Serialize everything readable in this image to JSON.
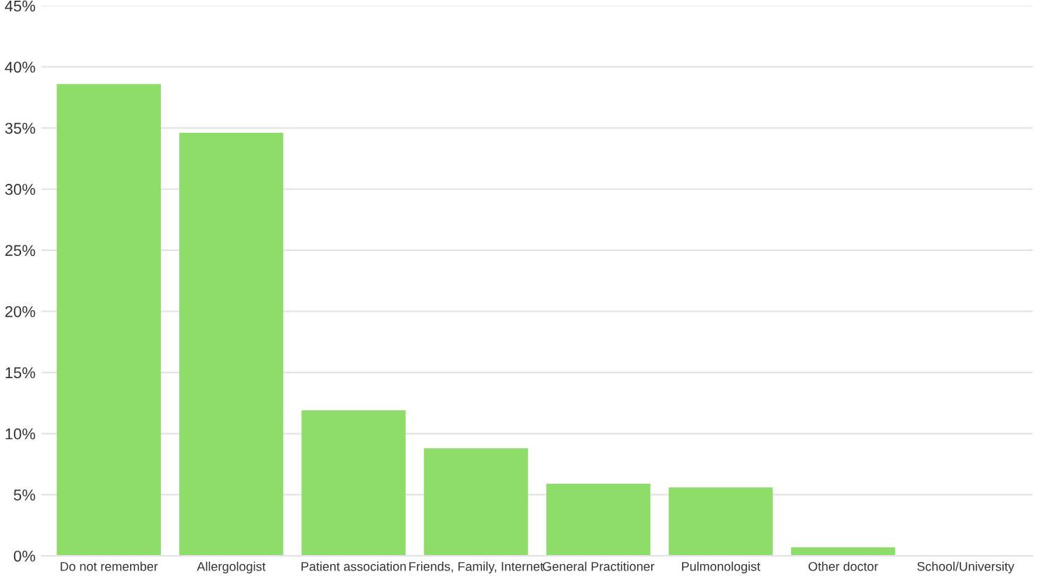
{
  "chart_data": {
    "type": "bar",
    "categories": [
      "Do not remember",
      "Allergologist",
      "Patient association",
      "Friends, Family, Internet",
      "General Practitioner",
      "Pulmonologist",
      "Other doctor",
      "School/University"
    ],
    "values": [
      38.6,
      34.6,
      11.9,
      8.8,
      5.9,
      5.6,
      0.7,
      0
    ],
    "color": "#8edc6a",
    "ylim": [
      0,
      45
    ],
    "yticks": [
      {
        "value": 0,
        "label": "0%"
      },
      {
        "value": 5,
        "label": "5%"
      },
      {
        "value": 10,
        "label": "10%"
      },
      {
        "value": 15,
        "label": "15%"
      },
      {
        "value": 20,
        "label": "20%"
      },
      {
        "value": 25,
        "label": "25%"
      },
      {
        "value": 30,
        "label": "30%"
      },
      {
        "value": 35,
        "label": "35%"
      },
      {
        "value": 40,
        "label": "40%"
      },
      {
        "value": 45,
        "label": "45%"
      }
    ],
    "grid": "y",
    "legend": false
  }
}
